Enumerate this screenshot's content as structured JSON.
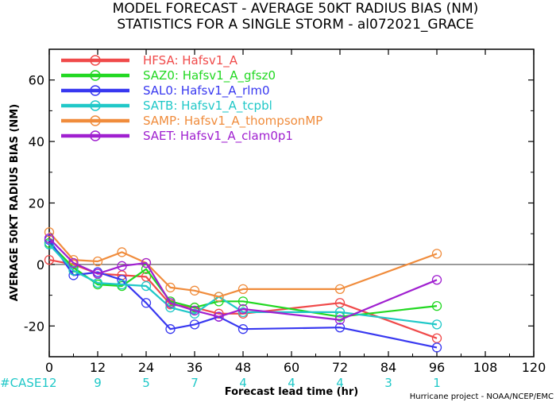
{
  "chart_data": {
    "type": "line",
    "title": "MODEL FORECAST - AVERAGE 50KT RADIUS BIAS (NM)",
    "subtitle": "STATISTICS FOR A SINGLE STORM - al072021_GRACE",
    "xlabel": "Forecast lead time (hr)",
    "ylabel": "AVERAGE 50KT RADIUS BIAS (NM)",
    "xlim": [
      0,
      120
    ],
    "ylim": [
      -30,
      70
    ],
    "xticks": [
      0,
      12,
      24,
      36,
      48,
      60,
      72,
      84,
      96,
      108,
      120
    ],
    "yticks": [
      -20,
      0,
      20,
      40,
      60
    ],
    "zero_line": true,
    "legend_position": "top-left",
    "series": [
      {
        "name": "HFSA: Hafsv1_A",
        "color": "#f04a4a",
        "x": [
          0,
          6,
          12,
          18,
          24,
          30,
          36,
          42,
          48,
          72,
          96
        ],
        "y": [
          1.5,
          0,
          -3,
          -3.5,
          -4,
          -13,
          -14,
          -16,
          -16,
          -12.5,
          -24
        ]
      },
      {
        "name": "SAZ0: Hafsv1_A_gfsz0",
        "color": "#22d822",
        "x": [
          0,
          6,
          12,
          18,
          24,
          30,
          36,
          42,
          48,
          72,
          96
        ],
        "y": [
          7,
          -1,
          -6.5,
          -7,
          -1.5,
          -12,
          -14,
          -12,
          -12,
          -17,
          -13.5
        ]
      },
      {
        "name": "SAL0: Hafsv1_A_rlm0",
        "color": "#3838f0",
        "x": [
          0,
          6,
          12,
          18,
          24,
          30,
          36,
          42,
          48,
          72,
          96
        ],
        "y": [
          8,
          -3.5,
          -2.5,
          -5,
          -12.5,
          -21,
          -19.5,
          -17,
          -21,
          -20.5,
          -27
        ]
      },
      {
        "name": "SATB: Hafsv1_A_tcpbl",
        "color": "#20c8c8",
        "x": [
          0,
          6,
          12,
          18,
          24,
          30,
          36,
          42,
          48,
          72,
          96
        ],
        "y": [
          6.5,
          -2,
          -6,
          -6.5,
          -7,
          -14,
          -16,
          -10.5,
          -15.5,
          -15.5,
          -19.5
        ]
      },
      {
        "name": "SAMP: Hafsv1_A_thompsonMP",
        "color": "#f08c3c",
        "x": [
          0,
          6,
          12,
          18,
          24,
          30,
          36,
          42,
          48,
          72,
          96
        ],
        "y": [
          10.5,
          1.5,
          1,
          4,
          0.5,
          -7.5,
          -8.5,
          -10.5,
          -8,
          -8,
          3.5
        ]
      },
      {
        "name": "SAET: Hafsv1_A_clam0p1",
        "color": "#a020d0",
        "x": [
          0,
          6,
          12,
          18,
          24,
          30,
          36,
          42,
          48,
          72,
          96
        ],
        "y": [
          8.5,
          0.5,
          -3,
          -0.5,
          0.5,
          -12.5,
          -15,
          -17,
          -14.5,
          -18,
          -5
        ]
      }
    ],
    "cases": {
      "label": "#CASE",
      "x": [
        0,
        12,
        24,
        36,
        48,
        60,
        72,
        84,
        96
      ],
      "counts": [
        "12",
        "9",
        "5",
        "7",
        "4",
        "4",
        "4",
        "3",
        "1"
      ]
    }
  },
  "credit": "Hurricane project - NOAA/NCEP/EMC",
  "colors": {
    "case_label": "#20c8c8",
    "case_counts": "#20c8c8",
    "zero_line": "#606060"
  }
}
